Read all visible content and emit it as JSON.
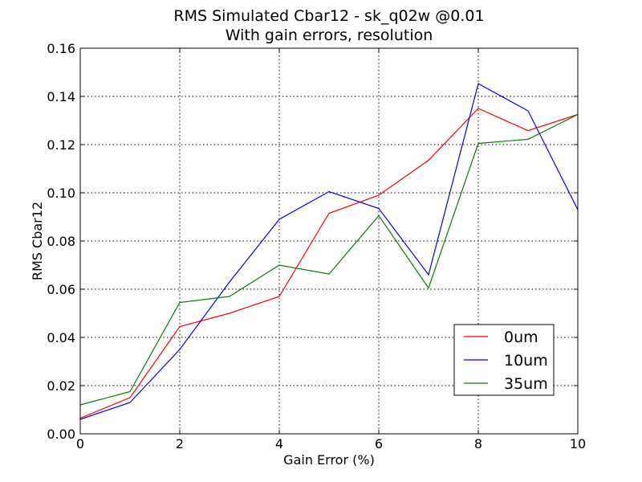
{
  "chart_data": {
    "type": "line",
    "title": "RMS Simulated Cbar12 - sk_q02w @0.01",
    "subtitle": "With gain errors, resolution",
    "xlabel": "Gain Error (%)",
    "ylabel": "RMS Cbar12",
    "xlim": [
      0,
      10
    ],
    "ylim": [
      0.0,
      0.16
    ],
    "x_ticks": [
      "0",
      "2",
      "4",
      "6",
      "8",
      "10"
    ],
    "y_ticks": [
      "0.00",
      "0.02",
      "0.04",
      "0.06",
      "0.08",
      "0.10",
      "0.12",
      "0.14",
      "0.16"
    ],
    "grid": true,
    "legend_position": "lower-right",
    "x": [
      0,
      1,
      2,
      3,
      4,
      5,
      6,
      7,
      8,
      9,
      10
    ],
    "series": [
      {
        "name": "0um",
        "color": "#ff0000",
        "values": [
          0.0065,
          0.015,
          0.0445,
          0.05,
          0.057,
          0.0915,
          0.099,
          0.1135,
          0.135,
          0.1258,
          0.1325
        ]
      },
      {
        "name": "10um",
        "color": "#0000ff",
        "values": [
          0.006,
          0.013,
          0.035,
          0.063,
          0.089,
          0.1005,
          0.0935,
          0.066,
          0.1453,
          0.134,
          0.093
        ]
      },
      {
        "name": "35um",
        "color": "#008000",
        "values": [
          0.012,
          0.0175,
          0.0545,
          0.057,
          0.07,
          0.0663,
          0.0905,
          0.0605,
          0.1205,
          0.1222,
          0.1325
        ]
      }
    ]
  }
}
